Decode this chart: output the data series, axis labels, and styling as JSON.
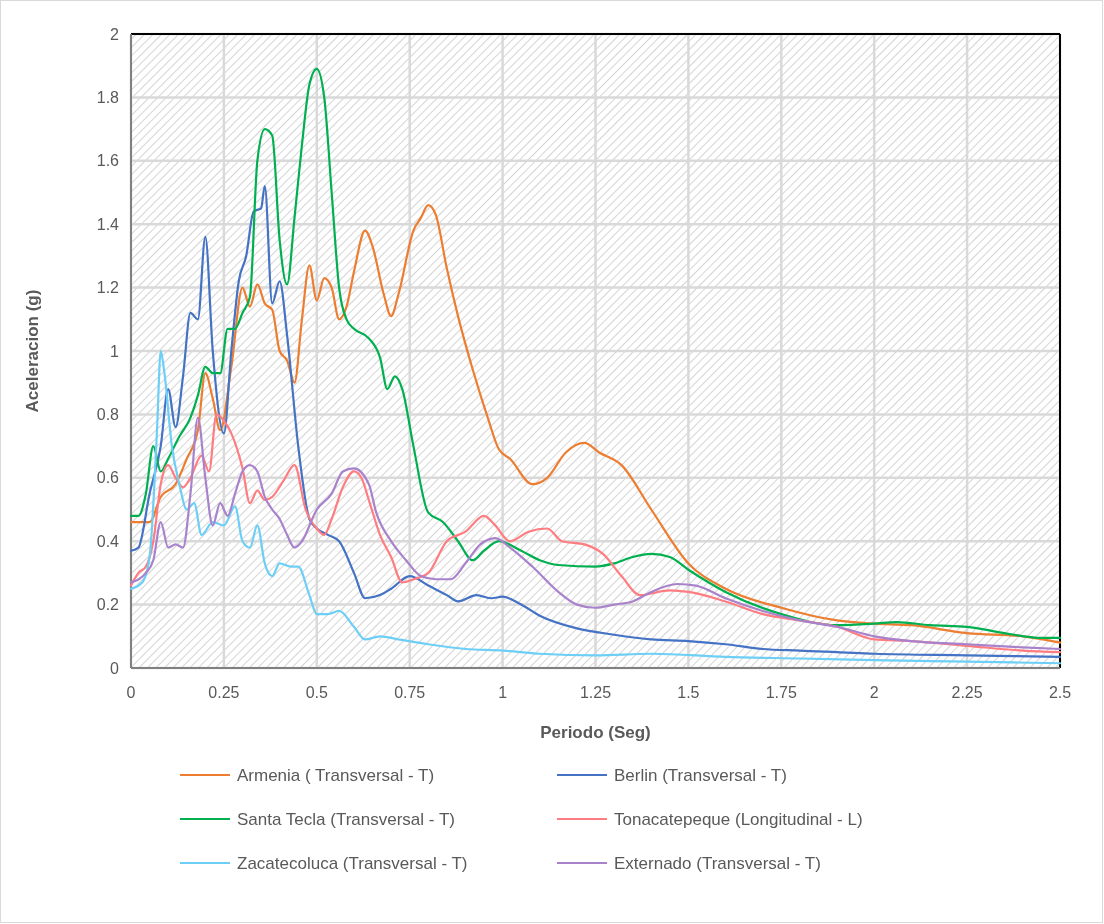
{
  "chart_data": {
    "type": "line",
    "xlabel": "Periodo (Seg)",
    "ylabel": "Aceleracion (g)",
    "xlim": [
      0,
      2.5
    ],
    "ylim": [
      0,
      2
    ],
    "xticks": [
      0,
      0.25,
      0.5,
      0.75,
      1,
      1.25,
      1.5,
      1.75,
      2,
      2.25,
      2.5
    ],
    "yticks": [
      0,
      0.2,
      0.4,
      0.6,
      0.8,
      1,
      1.2,
      1.4,
      1.6,
      1.8,
      2
    ],
    "grid": true,
    "legend": "bottom",
    "marker": "none",
    "line_style": "solid",
    "series": [
      {
        "name": "Armenia ( Transversal - T)",
        "color": "#ed7d31",
        "x": [
          0,
          0.05,
          0.08,
          0.12,
          0.15,
          0.18,
          0.2,
          0.22,
          0.24,
          0.27,
          0.3,
          0.32,
          0.34,
          0.36,
          0.38,
          0.4,
          0.42,
          0.44,
          0.46,
          0.48,
          0.5,
          0.52,
          0.54,
          0.56,
          0.58,
          0.6,
          0.63,
          0.65,
          0.68,
          0.7,
          0.72,
          0.76,
          0.78,
          0.8,
          0.82,
          0.85,
          0.88,
          0.92,
          0.96,
          0.99,
          1.02,
          1.08,
          1.12,
          1.17,
          1.22,
          1.26,
          1.32,
          1.4,
          1.5,
          1.6,
          1.75,
          1.9,
          2,
          2.1,
          2.25,
          2.4,
          2.5
        ],
        "values": [
          0.46,
          0.46,
          0.54,
          0.58,
          0.66,
          0.75,
          0.93,
          0.85,
          0.75,
          0.95,
          1.2,
          1.14,
          1.21,
          1.15,
          1.13,
          1.0,
          0.97,
          0.9,
          1.1,
          1.27,
          1.16,
          1.23,
          1.2,
          1.1,
          1.14,
          1.25,
          1.38,
          1.33,
          1.18,
          1.11,
          1.18,
          1.38,
          1.42,
          1.46,
          1.43,
          1.26,
          1.11,
          0.94,
          0.79,
          0.69,
          0.66,
          0.58,
          0.6,
          0.68,
          0.71,
          0.68,
          0.64,
          0.5,
          0.33,
          0.25,
          0.19,
          0.15,
          0.14,
          0.135,
          0.11,
          0.1,
          0.08
        ]
      },
      {
        "name": "Berlin (Transversal - T)",
        "color": "#4472c4",
        "x": [
          0,
          0.02,
          0.05,
          0.08,
          0.1,
          0.12,
          0.14,
          0.16,
          0.18,
          0.2,
          0.22,
          0.25,
          0.27,
          0.29,
          0.31,
          0.33,
          0.35,
          0.36,
          0.38,
          0.4,
          0.42,
          0.45,
          0.48,
          0.5,
          0.53,
          0.56,
          0.6,
          0.63,
          0.67,
          0.7,
          0.75,
          0.8,
          0.85,
          0.88,
          0.93,
          0.97,
          1,
          1.05,
          1.1,
          1.2,
          1.3,
          1.4,
          1.5,
          1.6,
          1.7,
          1.8,
          2,
          2.25,
          2.5
        ],
        "values": [
          0.37,
          0.38,
          0.55,
          0.7,
          0.88,
          0.76,
          0.92,
          1.12,
          1.1,
          1.36,
          1.0,
          0.74,
          1.0,
          1.22,
          1.3,
          1.44,
          1.45,
          1.52,
          1.15,
          1.22,
          1.05,
          0.7,
          0.47,
          0.44,
          0.42,
          0.4,
          0.3,
          0.22,
          0.23,
          0.25,
          0.29,
          0.26,
          0.23,
          0.21,
          0.23,
          0.22,
          0.225,
          0.2,
          0.165,
          0.125,
          0.105,
          0.09,
          0.085,
          0.075,
          0.06,
          0.055,
          0.045,
          0.04,
          0.035
        ]
      },
      {
        "name": "Santa Tecla (Transversal - T)",
        "color": "#00b050",
        "x": [
          0,
          0.02,
          0.04,
          0.06,
          0.08,
          0.1,
          0.13,
          0.16,
          0.18,
          0.2,
          0.22,
          0.24,
          0.26,
          0.28,
          0.3,
          0.32,
          0.34,
          0.36,
          0.38,
          0.4,
          0.42,
          0.44,
          0.46,
          0.48,
          0.5,
          0.52,
          0.54,
          0.56,
          0.58,
          0.6,
          0.64,
          0.67,
          0.69,
          0.71,
          0.73,
          0.76,
          0.8,
          0.84,
          0.88,
          0.92,
          0.95,
          0.99,
          1.05,
          1.1,
          1.15,
          1.25,
          1.3,
          1.35,
          1.4,
          1.45,
          1.5,
          1.6,
          1.75,
          1.9,
          2,
          2.06,
          2.15,
          2.25,
          2.35,
          2.45,
          2.5
        ],
        "values": [
          0.48,
          0.48,
          0.55,
          0.7,
          0.62,
          0.66,
          0.73,
          0.79,
          0.86,
          0.95,
          0.93,
          0.93,
          1.07,
          1.07,
          1.12,
          1.17,
          1.6,
          1.7,
          1.68,
          1.35,
          1.21,
          1.42,
          1.65,
          1.84,
          1.89,
          1.8,
          1.5,
          1.2,
          1.1,
          1.07,
          1.04,
          0.98,
          0.88,
          0.92,
          0.88,
          0.7,
          0.49,
          0.46,
          0.4,
          0.34,
          0.37,
          0.4,
          0.37,
          0.34,
          0.325,
          0.32,
          0.33,
          0.35,
          0.36,
          0.35,
          0.31,
          0.24,
          0.17,
          0.135,
          0.14,
          0.145,
          0.135,
          0.13,
          0.11,
          0.095,
          0.095
        ]
      },
      {
        "name": "Tonacatepeque (Longitudinal - L)",
        "color": "#ff7c80",
        "x": [
          0,
          0.02,
          0.04,
          0.06,
          0.08,
          0.1,
          0.12,
          0.14,
          0.16,
          0.19,
          0.21,
          0.23,
          0.25,
          0.27,
          0.3,
          0.32,
          0.34,
          0.36,
          0.38,
          0.41,
          0.44,
          0.47,
          0.5,
          0.52,
          0.54,
          0.57,
          0.6,
          0.62,
          0.64,
          0.67,
          0.7,
          0.73,
          0.76,
          0.8,
          0.85,
          0.9,
          0.95,
          0.98,
          1.02,
          1.07,
          1.12,
          1.16,
          1.22,
          1.27,
          1.32,
          1.37,
          1.45,
          1.5,
          1.6,
          1.7,
          1.8,
          1.9,
          2,
          2.1,
          2.25,
          2.4,
          2.5
        ],
        "values": [
          0.26,
          0.3,
          0.32,
          0.4,
          0.58,
          0.64,
          0.6,
          0.57,
          0.6,
          0.67,
          0.62,
          0.8,
          0.78,
          0.74,
          0.63,
          0.52,
          0.56,
          0.53,
          0.54,
          0.59,
          0.64,
          0.5,
          0.44,
          0.42,
          0.47,
          0.57,
          0.62,
          0.6,
          0.53,
          0.42,
          0.35,
          0.27,
          0.28,
          0.3,
          0.4,
          0.43,
          0.48,
          0.45,
          0.4,
          0.43,
          0.44,
          0.4,
          0.39,
          0.36,
          0.29,
          0.23,
          0.245,
          0.24,
          0.21,
          0.17,
          0.15,
          0.13,
          0.09,
          0.085,
          0.07,
          0.055,
          0.05
        ]
      },
      {
        "name": "Zacatecoluca (Transversal - T)",
        "color": "#6dcff6",
        "x": [
          0,
          0.03,
          0.05,
          0.07,
          0.08,
          0.09,
          0.11,
          0.13,
          0.15,
          0.17,
          0.19,
          0.22,
          0.25,
          0.28,
          0.3,
          0.32,
          0.34,
          0.36,
          0.38,
          0.4,
          0.43,
          0.45,
          0.48,
          0.5,
          0.53,
          0.56,
          0.6,
          0.63,
          0.67,
          0.72,
          0.8,
          0.9,
          1,
          1.1,
          1.25,
          1.4,
          1.6,
          1.8,
          2,
          2.25,
          2.5
        ],
        "values": [
          0.25,
          0.27,
          0.35,
          0.75,
          1.0,
          0.93,
          0.7,
          0.58,
          0.5,
          0.52,
          0.42,
          0.46,
          0.45,
          0.51,
          0.4,
          0.38,
          0.45,
          0.33,
          0.29,
          0.33,
          0.32,
          0.32,
          0.23,
          0.17,
          0.17,
          0.18,
          0.13,
          0.09,
          0.1,
          0.09,
          0.075,
          0.06,
          0.055,
          0.045,
          0.04,
          0.045,
          0.035,
          0.03,
          0.025,
          0.02,
          0.015
        ]
      },
      {
        "name": "Externado (Transversal - T)",
        "color": "#a982cc",
        "x": [
          0,
          0.04,
          0.06,
          0.08,
          0.1,
          0.12,
          0.14,
          0.16,
          0.18,
          0.2,
          0.22,
          0.24,
          0.26,
          0.28,
          0.3,
          0.32,
          0.34,
          0.36,
          0.38,
          0.4,
          0.42,
          0.44,
          0.46,
          0.5,
          0.54,
          0.57,
          0.6,
          0.64,
          0.66,
          0.7,
          0.74,
          0.78,
          0.82,
          0.86,
          0.9,
          0.94,
          0.98,
          1.02,
          1.08,
          1.15,
          1.2,
          1.25,
          1.3,
          1.35,
          1.4,
          1.47,
          1.52,
          1.6,
          1.7,
          1.8,
          1.9,
          2,
          2.1,
          2.25,
          2.4,
          2.5
        ],
        "values": [
          0.27,
          0.3,
          0.34,
          0.46,
          0.38,
          0.39,
          0.38,
          0.55,
          0.79,
          0.6,
          0.45,
          0.52,
          0.48,
          0.55,
          0.62,
          0.64,
          0.62,
          0.54,
          0.5,
          0.47,
          0.42,
          0.38,
          0.4,
          0.5,
          0.55,
          0.62,
          0.63,
          0.58,
          0.49,
          0.4,
          0.34,
          0.29,
          0.28,
          0.28,
          0.33,
          0.39,
          0.41,
          0.38,
          0.32,
          0.24,
          0.2,
          0.19,
          0.2,
          0.21,
          0.24,
          0.265,
          0.26,
          0.22,
          0.18,
          0.15,
          0.13,
          0.1,
          0.085,
          0.075,
          0.065,
          0.06
        ]
      }
    ]
  }
}
